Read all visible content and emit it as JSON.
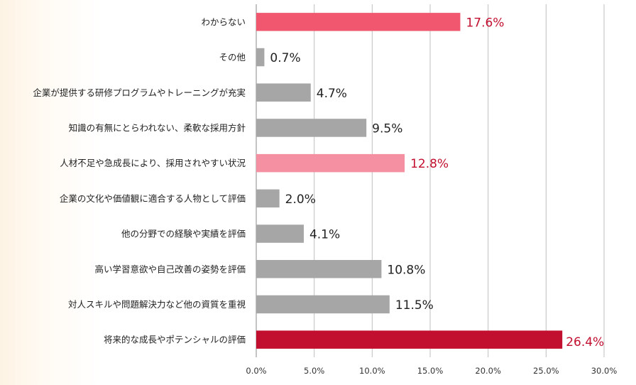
{
  "chart_data": {
    "type": "bar",
    "orientation": "horizontal",
    "title": "",
    "xlabel": "",
    "ylabel": "",
    "xlim": [
      0,
      30
    ],
    "grid": true,
    "categories": [
      "わからない",
      "その他",
      "企業が提供する研修プログラムやトレーニングが充実",
      "知識の有無にとらわれない、柔軟な採用方針",
      "人材不足や急成長により、採用されやすい状況",
      "企業の文化や価値観に適合する人物として評価",
      "他の分野での経験や実績を評価",
      "高い学習意欲や自己改善の姿勢を評価",
      "対人スキルや問題解決力など他の資質を重視",
      "将来的な成長やポテンシャルの評価"
    ],
    "values": [
      17.6,
      0.7,
      4.7,
      9.5,
      12.8,
      2.0,
      4.1,
      10.8,
      11.5,
      26.4
    ],
    "value_labels": [
      "17.6%",
      "0.7%",
      "4.7%",
      "9.5%",
      "12.8%",
      "2.0%",
      "4.1%",
      "10.8%",
      "11.5%",
      "26.4%"
    ],
    "x_ticks": [
      "0.0%",
      "5.0%",
      "10.0%",
      "15.0%",
      "20.0%",
      "25.0%",
      "30.0%"
    ],
    "tick_values": [
      0,
      5,
      10,
      15,
      20,
      25,
      30
    ],
    "bar_colors": [
      "#f1576f",
      "#a6a6a6",
      "#a6a6a6",
      "#a6a6a6",
      "#f590a2",
      "#a6a6a6",
      "#a6a6a6",
      "#a6a6a6",
      "#a6a6a6",
      "#c20f2f"
    ],
    "label_colors": [
      "#c20f2f",
      "#222222",
      "#222222",
      "#222222",
      "#c20f2f",
      "#222222",
      "#222222",
      "#222222",
      "#222222",
      "#c20f2f"
    ]
  }
}
